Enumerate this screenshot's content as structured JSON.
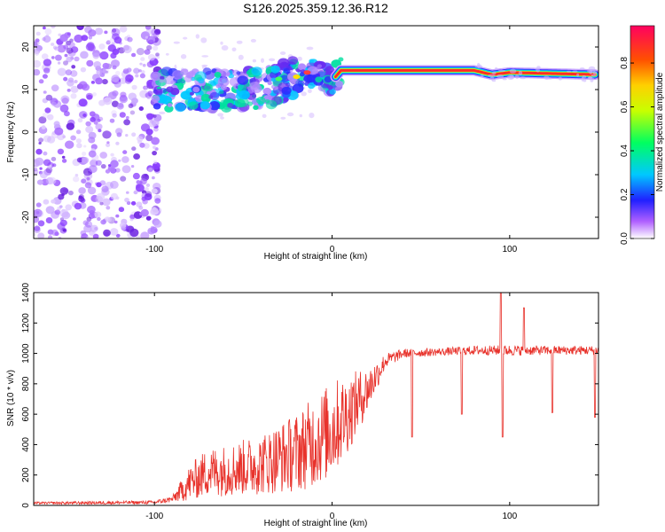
{
  "title": "S126.2025.359.12.36.R12",
  "colors": {
    "snr_line": "#e8322b",
    "axis": "#000000",
    "dot": "#8a4dff"
  },
  "chart_data": [
    {
      "type": "heatmap",
      "title": "S126.2025.359.12.36.R12",
      "xlabel": "Height of straight line (km)",
      "ylabel": "Frequency (Hz)",
      "xlim": [
        -168,
        150
      ],
      "ylim": [
        -25,
        25
      ],
      "x_ticks": [
        -100,
        0,
        100
      ],
      "y_ticks": [
        20,
        10,
        0,
        -10,
        -20
      ],
      "colorbar": {
        "label": "Normalized spectral amplitude",
        "range": [
          0.0,
          0.97
        ],
        "ticks": [
          0.0,
          0.2,
          0.4,
          0.6,
          0.8
        ],
        "tick_labels": [
          "0.0",
          "0.2",
          "0.4",
          "0.6",
          "0.8"
        ]
      },
      "ridge": {
        "description_points_x": [
          -100,
          -80,
          -60,
          -40,
          -20,
          -10,
          0,
          5,
          80,
          90,
          100,
          150
        ],
        "frequency_hz": [
          10,
          10,
          10,
          10,
          13,
          14,
          12,
          14.5,
          14.5,
          13.5,
          14,
          13.5
        ]
      }
    },
    {
      "type": "line",
      "xlabel": "Height of straight line (km)",
      "ylabel": "SNR (10 * v/v)",
      "xlim": [
        -168,
        150
      ],
      "ylim": [
        0,
        1400
      ],
      "x_ticks": [
        -100,
        0,
        100
      ],
      "y_ticks": [
        0,
        200,
        400,
        600,
        800,
        1000,
        1200,
        1400
      ],
      "envelope_x": [
        -168,
        -100,
        -90,
        -80,
        -70,
        -60,
        -40,
        -20,
        -10,
        0,
        10,
        20,
        30,
        40,
        60,
        80,
        100,
        120,
        150
      ],
      "envelope_mean": [
        15,
        20,
        40,
        150,
        220,
        230,
        270,
        350,
        420,
        500,
        620,
        760,
        950,
        1000,
        1010,
        1020,
        1020,
        1020,
        1020
      ],
      "envelope_spread": [
        8,
        12,
        20,
        120,
        160,
        170,
        200,
        260,
        300,
        320,
        250,
        150,
        50,
        30,
        25,
        30,
        35,
        30,
        30
      ],
      "spikes": [
        {
          "x": 45,
          "y": 450
        },
        {
          "x": 73,
          "y": 600
        },
        {
          "x": 95,
          "y": 1400
        },
        {
          "x": 96,
          "y": 450
        },
        {
          "x": 108,
          "y": 1300
        },
        {
          "x": 124,
          "y": 610
        },
        {
          "x": 148,
          "y": 580
        }
      ]
    }
  ]
}
